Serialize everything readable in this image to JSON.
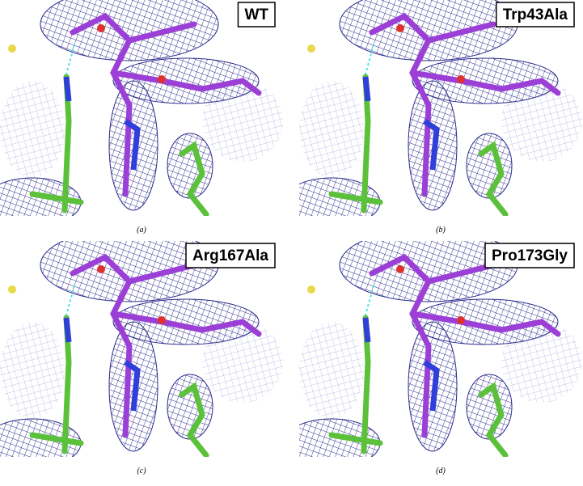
{
  "panels": [
    {
      "label": "WT",
      "caption": "(a)"
    },
    {
      "label": "Trp43Ala",
      "caption": "(b)"
    },
    {
      "label": "Arg167Ala",
      "caption": "(c)"
    },
    {
      "label": "Pro173Gly",
      "caption": "(d)"
    }
  ]
}
